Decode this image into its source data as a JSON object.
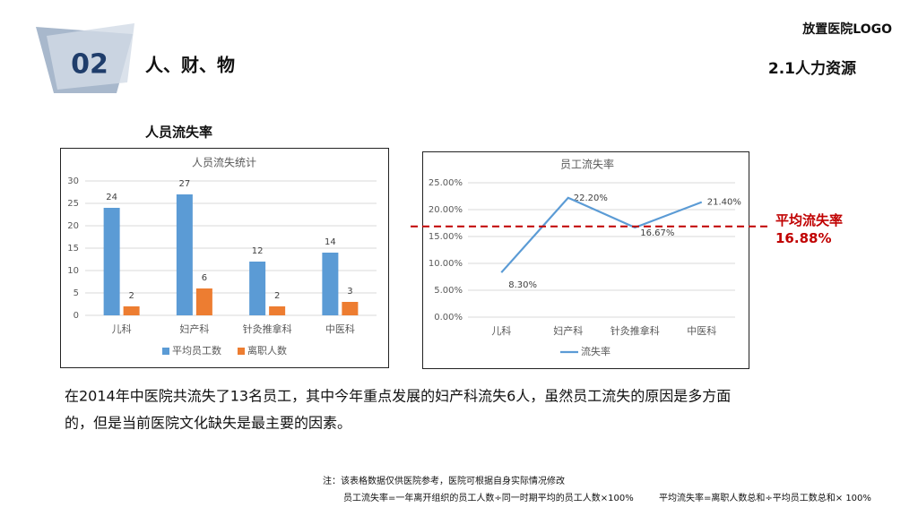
{
  "header": {
    "number": "02",
    "title": "人、财、物",
    "logo": "放置医院LOGO",
    "section": "2.1人力资源"
  },
  "subtitle": "人员流失率",
  "chart_data": [
    {
      "type": "bar",
      "title": "人员流失统计",
      "categories": [
        "儿科",
        "妇产科",
        "针灸推拿科",
        "中医科"
      ],
      "series": [
        {
          "name": "平均员工数",
          "color": "#5b9bd5",
          "values": [
            24,
            27,
            12,
            14
          ]
        },
        {
          "name": "离职人数",
          "color": "#ed7d31",
          "values": [
            2,
            6,
            2,
            3
          ]
        }
      ],
      "ylim": [
        0,
        30
      ],
      "yticks": [
        0,
        5,
        10,
        15,
        20,
        25,
        30
      ],
      "grid": true,
      "legend": "bottom"
    },
    {
      "type": "line",
      "title": "员工流失率",
      "categories": [
        "儿科",
        "妇产科",
        "针灸推拿科",
        "中医科"
      ],
      "series": [
        {
          "name": "流失率",
          "color": "#5b9bd5",
          "values": [
            8.3,
            22.2,
            16.67,
            21.4
          ],
          "value_labels": [
            "8.30%",
            "22.20%",
            "16.67%",
            "21.40%"
          ]
        }
      ],
      "ylim": [
        0,
        25
      ],
      "yticks": [
        {
          "value": 0,
          "label": "0.00%"
        },
        {
          "value": 5,
          "label": "5.00%"
        },
        {
          "value": 10,
          "label": "10.00%"
        },
        {
          "value": 15,
          "label": "15.00%"
        },
        {
          "value": 20,
          "label": "20.00%"
        },
        {
          "value": 25,
          "label": "25.00%"
        }
      ],
      "grid": true,
      "legend": "bottom",
      "reference_line": {
        "label": "平均流失率",
        "value": 16.88,
        "value_label": "16.88%",
        "color": "#c00000"
      }
    }
  ],
  "paragraph": [
    "在2014年中医院共流失了13名员工，其中今年重点发展的妇产科流失6人，虽然员工流失的原因是多方面",
    "的，但是当前医院文化缺失是最主要的因素。"
  ],
  "notes": [
    "注：该表格数据仅供医院参考，医院可根据自身实际情况修改",
    "员工流失率=一年离开组织的员工人数÷同一时期平均的员工人数×100%",
    "平均流失率=离职人数总和÷平均员工数总和× 100%"
  ]
}
